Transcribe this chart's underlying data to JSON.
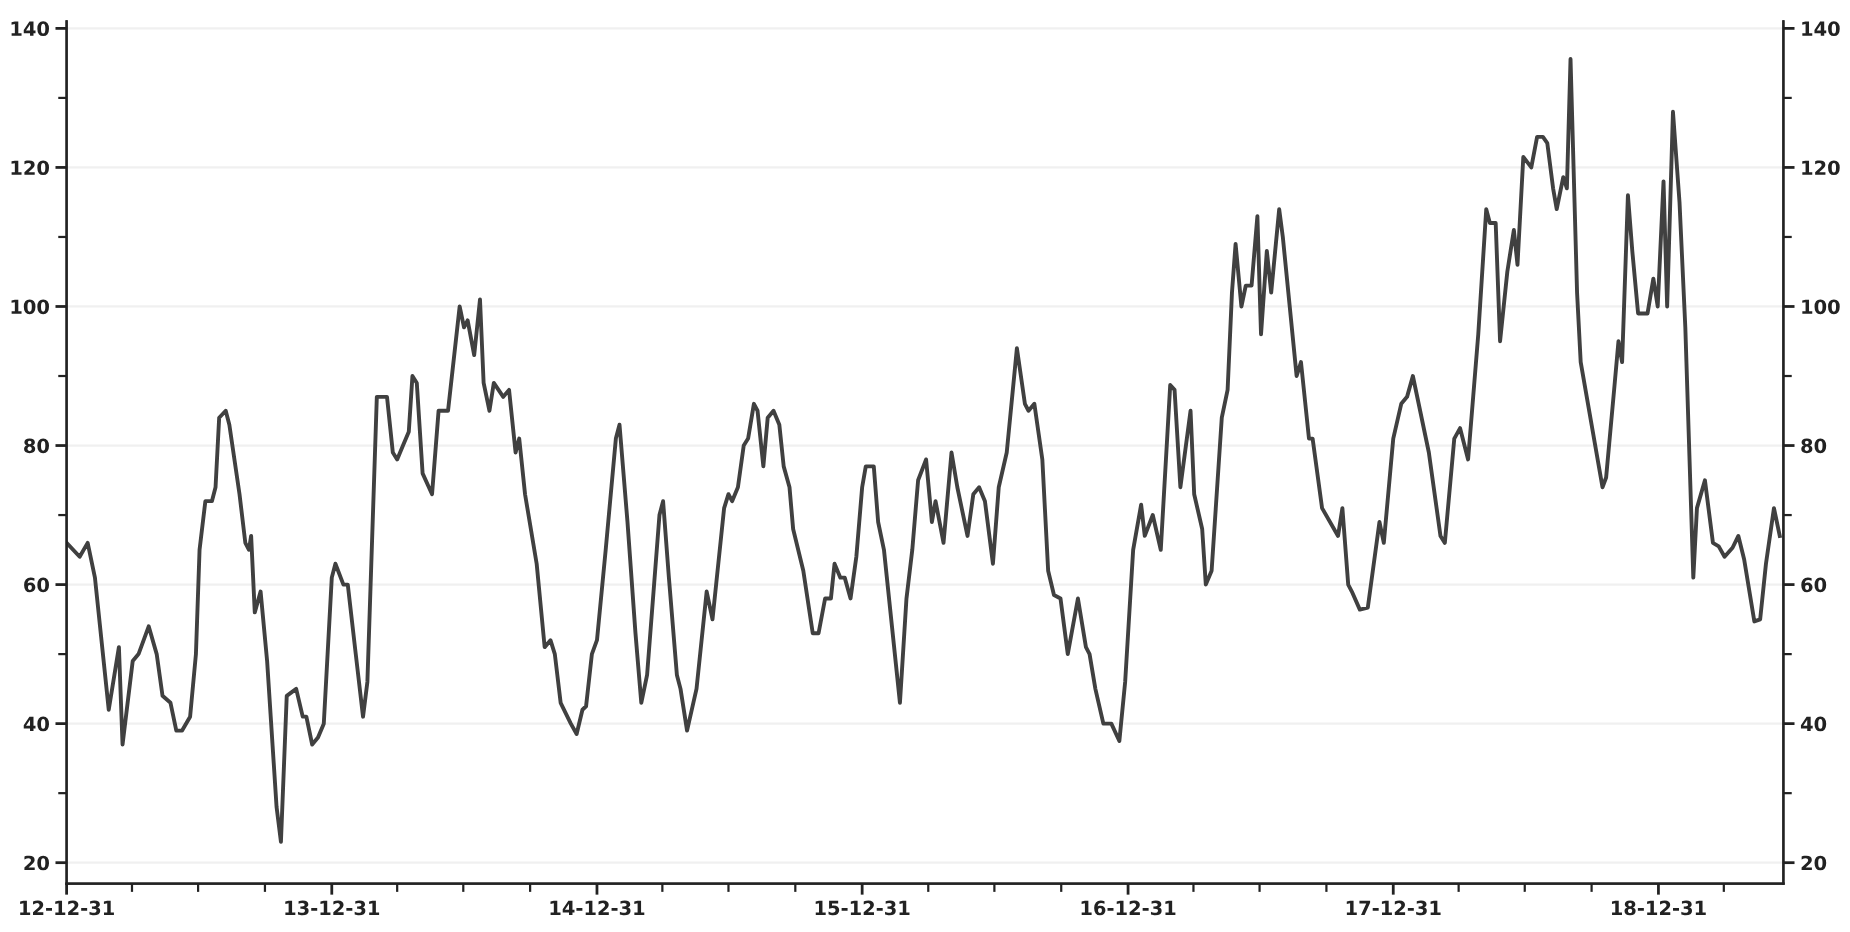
{
  "chart_data": {
    "type": "line",
    "x": [
      "2012-12-31",
      "2013-01-18",
      "2013-01-29",
      "2013-02-08",
      "2013-02-27",
      "2013-03-13",
      "2013-03-18",
      "2013-04-01",
      "2013-04-09",
      "2013-04-23",
      "2013-05-04",
      "2013-05-12",
      "2013-05-23",
      "2013-05-31",
      "2013-06-08",
      "2013-06-19",
      "2013-06-27",
      "2013-07-02",
      "2013-07-10",
      "2013-07-19",
      "2013-07-24",
      "2013-07-29",
      "2013-08-07",
      "2013-08-12",
      "2013-08-26",
      "2013-09-03",
      "2013-09-08",
      "2013-09-11",
      "2013-09-16",
      "2013-09-24",
      "2013-10-03",
      "2013-10-16",
      "2013-10-22",
      "2013-10-30",
      "2013-11-12",
      "2013-11-21",
      "2013-11-26",
      "2013-12-04",
      "2013-12-12",
      "2013-12-20",
      "2013-12-31",
      "2014-01-05",
      "2014-01-16",
      "2014-01-22",
      "2014-02-02",
      "2014-02-12",
      "2014-02-18",
      "2014-03-03",
      "2014-03-17",
      "2014-03-25",
      "2014-03-31",
      "2014-04-08",
      "2014-04-16",
      "2014-04-21",
      "2014-04-27",
      "2014-05-05",
      "2014-05-18",
      "2014-05-27",
      "2014-06-09",
      "2014-06-25",
      "2014-07-01",
      "2014-07-06",
      "2014-07-15",
      "2014-07-23",
      "2014-07-28",
      "2014-08-05",
      "2014-08-11",
      "2014-08-24",
      "2014-09-01",
      "2014-09-10",
      "2014-09-15",
      "2014-09-23",
      "2014-10-09",
      "2014-10-20",
      "2014-10-28",
      "2014-11-03",
      "2014-11-11",
      "2014-11-25",
      "2014-12-03",
      "2014-12-11",
      "2014-12-16",
      "2014-12-24",
      "2014-12-31",
      "2015-01-12",
      "2015-01-26",
      "2015-01-31",
      "2015-02-11",
      "2015-02-22",
      "2015-03-02",
      "2015-03-10",
      "2015-03-27",
      "2015-04-01",
      "2015-04-09",
      "2015-04-20",
      "2015-04-25",
      "2015-05-04",
      "2015-05-17",
      "2015-05-31",
      "2015-06-08",
      "2015-06-24",
      "2015-06-30",
      "2015-07-05",
      "2015-07-13",
      "2015-07-21",
      "2015-07-27",
      "2015-08-04",
      "2015-08-09",
      "2015-08-17",
      "2015-08-23",
      "2015-08-31",
      "2015-09-08",
      "2015-09-14",
      "2015-09-22",
      "2015-09-27",
      "2015-10-11",
      "2015-10-24",
      "2015-11-01",
      "2015-11-10",
      "2015-11-18",
      "2015-11-23",
      "2015-12-01",
      "2015-12-07",
      "2015-12-15",
      "2015-12-23",
      "2015-12-31",
      "2016-01-05",
      "2016-01-16",
      "2016-01-22",
      "2016-01-30",
      "2016-02-10",
      "2016-02-21",
      "2016-03-01",
      "2016-03-09",
      "2016-03-17",
      "2016-03-28",
      "2016-04-05",
      "2016-04-10",
      "2016-04-21",
      "2016-05-02",
      "2016-05-10",
      "2016-05-24",
      "2016-06-01",
      "2016-06-09",
      "2016-06-17",
      "2016-06-28",
      "2016-07-06",
      "2016-07-17",
      "2016-07-31",
      "2016-08-11",
      "2016-08-16",
      "2016-08-24",
      "2016-09-04",
      "2016-09-12",
      "2016-09-20",
      "2016-09-29",
      "2016-10-09",
      "2016-10-23",
      "2016-11-03",
      "2016-11-08",
      "2016-11-16",
      "2016-11-27",
      "2016-12-08",
      "2016-12-19",
      "2016-12-27",
      "2017-01-07",
      "2017-01-18",
      "2017-01-23",
      "2017-02-03",
      "2017-02-14",
      "2017-02-27",
      "2017-03-05",
      "2017-03-13",
      "2017-03-27",
      "2017-04-01",
      "2017-04-12",
      "2017-04-17",
      "2017-04-25",
      "2017-05-09",
      "2017-05-17",
      "2017-05-23",
      "2017-05-28",
      "2017-06-05",
      "2017-06-11",
      "2017-06-19",
      "2017-06-27",
      "2017-07-02",
      "2017-07-10",
      "2017-07-16",
      "2017-07-27",
      "2017-08-01",
      "2017-08-20",
      "2017-08-26",
      "2017-09-06",
      "2017-09-11",
      "2017-09-24",
      "2017-10-16",
      "2017-10-22",
      "2017-10-30",
      "2017-11-04",
      "2017-11-15",
      "2017-11-26",
      "2017-12-12",
      "2017-12-18",
      "2017-12-31",
      "2018-01-11",
      "2018-01-19",
      "2018-01-27",
      "2018-02-18",
      "2018-03-06",
      "2018-03-12",
      "2018-03-25",
      "2018-04-02",
      "2018-04-13",
      "2018-04-27",
      "2018-05-08",
      "2018-05-13",
      "2018-05-21",
      "2018-05-27",
      "2018-06-06",
      "2018-06-15",
      "2018-06-20",
      "2018-06-28",
      "2018-07-09",
      "2018-07-17",
      "2018-07-25",
      "2018-07-31",
      "2018-08-08",
      "2018-08-13",
      "2018-08-22",
      "2018-08-27",
      "2018-09-01",
      "2018-09-10",
      "2018-09-15",
      "2018-10-15",
      "2018-10-20",
      "2018-10-31",
      "2018-11-06",
      "2018-11-11",
      "2018-11-19",
      "2018-11-25",
      "2018-12-03",
      "2018-12-16",
      "2018-12-24",
      "2018-12-30",
      "2019-01-07",
      "2019-01-12",
      "2019-01-20",
      "2019-01-29",
      "2019-02-06",
      "2019-02-17",
      "2019-02-22",
      "2019-03-05",
      "2019-03-16",
      "2019-03-24",
      "2019-04-01",
      "2019-04-12",
      "2019-04-20",
      "2019-04-28",
      "2019-05-12",
      "2019-05-20",
      "2019-05-28",
      "2019-06-08",
      "2019-06-16"
    ],
    "series": [
      {
        "color": "#404040",
        "values": [
          66,
          64,
          66,
          61,
          42,
          51,
          37,
          49,
          50,
          54,
          50,
          44,
          43,
          39,
          39,
          41,
          50,
          65,
          72,
          72,
          74,
          84,
          85,
          83,
          73,
          66,
          65,
          67,
          56,
          59,
          49,
          28,
          23,
          44,
          45,
          41,
          41,
          37,
          38,
          40,
          61,
          63,
          60,
          60,
          50,
          41,
          46,
          87,
          87,
          79,
          78,
          80,
          82,
          90,
          89,
          76,
          73,
          85,
          85,
          100,
          97,
          98,
          93,
          101,
          89,
          85,
          89,
          87,
          88,
          79,
          81,
          73,
          63,
          51,
          52,
          50,
          43,
          40,
          38.5,
          42,
          42.5,
          50,
          52,
          65,
          81,
          83,
          69,
          53,
          43,
          47,
          70,
          72,
          61,
          47,
          45,
          39,
          45,
          59,
          55,
          71,
          73,
          72,
          74,
          80,
          81,
          86,
          85,
          77,
          84,
          85,
          83,
          77,
          74,
          68,
          62,
          53,
          53,
          58,
          58,
          63,
          61,
          61,
          58,
          64,
          74,
          77,
          77,
          69,
          65,
          54,
          43,
          58,
          65,
          75,
          78,
          69,
          72,
          66,
          79,
          74,
          67,
          73,
          74,
          72,
          63,
          74,
          79,
          94,
          86,
          85,
          86,
          78,
          62,
          58.5,
          58,
          50,
          58,
          51,
          50,
          45,
          40,
          40,
          37.5,
          46,
          65,
          71.5,
          67,
          70,
          65,
          88.7,
          88,
          74,
          85,
          73,
          68,
          60,
          62,
          84,
          88,
          102,
          109,
          100,
          103,
          103,
          113,
          96,
          108,
          102,
          114,
          110,
          90,
          92,
          81,
          81,
          71,
          67,
          71,
          60,
          59,
          56.4,
          56.7,
          69,
          66,
          81,
          86,
          87,
          90,
          79,
          67,
          66,
          81,
          82.5,
          78,
          96,
          114,
          112,
          112,
          95,
          105,
          111,
          106,
          121.5,
          120,
          124.4,
          124.4,
          123.5,
          117,
          114,
          118.6,
          117,
          135.6,
          102,
          92,
          74,
          75.4,
          88,
          95,
          92,
          116,
          108,
          99,
          99,
          104,
          100,
          118,
          100,
          128,
          115,
          97,
          61,
          71,
          75,
          66,
          65.5,
          64,
          65.3,
          67,
          63.6,
          54.7,
          55,
          63,
          71,
          67
        ]
      }
    ],
    "xlim": [
      "2012-12-31",
      "2019-06-21"
    ],
    "xticks": [
      {
        "value": "2012-12-31",
        "label": "12-12-31"
      },
      {
        "value": "2013-03-31",
        "label": null
      },
      {
        "value": "2013-06-30",
        "label": null
      },
      {
        "value": "2013-09-30",
        "label": null
      },
      {
        "value": "2013-12-31",
        "label": "13-12-31"
      },
      {
        "value": "2014-03-31",
        "label": null
      },
      {
        "value": "2014-06-30",
        "label": null
      },
      {
        "value": "2014-09-30",
        "label": null
      },
      {
        "value": "2014-12-31",
        "label": "14-12-31"
      },
      {
        "value": "2015-03-31",
        "label": null
      },
      {
        "value": "2015-06-30",
        "label": null
      },
      {
        "value": "2015-09-30",
        "label": null
      },
      {
        "value": "2015-12-31",
        "label": "15-12-31"
      },
      {
        "value": "2016-03-31",
        "label": null
      },
      {
        "value": "2016-06-30",
        "label": null
      },
      {
        "value": "2016-09-30",
        "label": null
      },
      {
        "value": "2016-12-31",
        "label": "16-12-31"
      },
      {
        "value": "2017-03-31",
        "label": null
      },
      {
        "value": "2017-06-30",
        "label": null
      },
      {
        "value": "2017-09-30",
        "label": null
      },
      {
        "value": "2017-12-31",
        "label": "17-12-31"
      },
      {
        "value": "2018-03-31",
        "label": null
      },
      {
        "value": "2018-06-30",
        "label": null
      },
      {
        "value": "2018-09-30",
        "label": null
      },
      {
        "value": "2018-12-31",
        "label": "18-12-31"
      },
      {
        "value": "2019-03-31",
        "label": null
      }
    ],
    "ylim": [
      17,
      141
    ],
    "yticks": [
      20,
      {
        "value": 30,
        "label": null
      },
      40,
      {
        "value": 50,
        "label": null
      },
      60,
      {
        "value": 70,
        "label": null
      },
      80,
      {
        "value": 90,
        "label": null
      },
      100,
      {
        "value": 110,
        "label": null
      },
      120,
      {
        "value": 130,
        "label": null
      },
      140
    ],
    "y2lim": [
      17,
      141
    ],
    "y2ticks": [
      20,
      {
        "value": 30,
        "label": null
      },
      40,
      {
        "value": 50,
        "label": null
      },
      60,
      {
        "value": 70,
        "label": null
      },
      80,
      {
        "value": 90,
        "label": null
      },
      100,
      {
        "value": 110,
        "label": null
      },
      120,
      {
        "value": 130,
        "label": null
      },
      140
    ],
    "grid": "y",
    "marker": "none",
    "line_style": "solid"
  }
}
